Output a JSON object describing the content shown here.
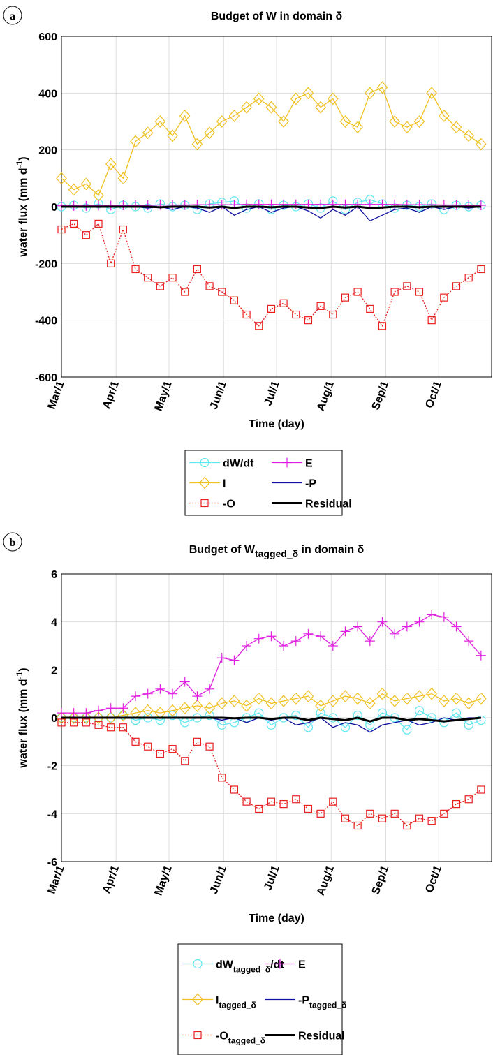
{
  "chart_data": [
    {
      "type": "line",
      "panel_label": "a",
      "title": [
        "Budget of W in domain δ"
      ],
      "ylabel": [
        "water flux (mm d",
        "-1",
        ")"
      ],
      "xlabel": "Time (day)",
      "x": [
        0,
        7,
        14,
        21,
        28,
        35,
        42,
        49,
        56,
        63,
        70,
        77,
        84,
        91,
        98,
        105,
        112,
        119,
        126,
        133,
        140,
        147,
        154,
        161,
        168,
        175,
        182,
        189,
        196,
        203,
        210,
        217,
        224,
        231,
        238
      ],
      "xlim": [
        0,
        244
      ],
      "xticks": [
        {
          "value": 0,
          "label": "Mar/1"
        },
        {
          "value": 31,
          "label": "Apr/1"
        },
        {
          "value": 61,
          "label": "May/1"
        },
        {
          "value": 92,
          "label": "Jun/1"
        },
        {
          "value": 122,
          "label": "Jul/1"
        },
        {
          "value": 153,
          "label": "Aug/1"
        },
        {
          "value": 184,
          "label": "Sep/1"
        },
        {
          "value": 214,
          "label": "Oct/1"
        }
      ],
      "ylim": [
        -600,
        600
      ],
      "yticks": [
        600,
        400,
        200,
        0,
        -200,
        -400,
        -600
      ],
      "grid": true,
      "series": [
        {
          "name": [
            "dW/dt"
          ],
          "color": "#5ee6f0",
          "marker": "circle",
          "values": [
            0,
            5,
            -5,
            10,
            -10,
            5,
            0,
            -5,
            10,
            0,
            5,
            -10,
            10,
            15,
            20,
            -5,
            10,
            -10,
            5,
            0,
            10,
            -5,
            20,
            -10,
            15,
            25,
            10,
            -5,
            5,
            0,
            10,
            -10,
            5,
            0,
            5
          ]
        },
        {
          "name": [
            "I"
          ],
          "color": "#f0c020",
          "marker": "diamond",
          "values": [
            100,
            60,
            80,
            40,
            150,
            100,
            230,
            260,
            300,
            250,
            320,
            220,
            260,
            300,
            320,
            350,
            380,
            350,
            300,
            380,
            400,
            350,
            380,
            300,
            280,
            400,
            420,
            300,
            280,
            300,
            400,
            320,
            280,
            250,
            220
          ]
        },
        {
          "name": [
            "-O"
          ],
          "color": "#e82020",
          "marker": "square",
          "dash": true,
          "values": [
            -80,
            -60,
            -100,
            -60,
            -200,
            -80,
            -220,
            -250,
            -280,
            -250,
            -300,
            -220,
            -280,
            -300,
            -330,
            -380,
            -420,
            -360,
            -340,
            -380,
            -400,
            -350,
            -380,
            -320,
            -300,
            -360,
            -420,
            -300,
            -280,
            -300,
            -400,
            -320,
            -280,
            -250,
            -220
          ]
        },
        {
          "name": [
            "E"
          ],
          "color": "#e020e0",
          "marker": "plus",
          "values": [
            3,
            3,
            3,
            4,
            4,
            5,
            5,
            5,
            6,
            6,
            6,
            7,
            7,
            7,
            7,
            8,
            8,
            8,
            8,
            8,
            8,
            8,
            8,
            8,
            8,
            8,
            8,
            8,
            7,
            7,
            7,
            6,
            6,
            5,
            5
          ]
        },
        {
          "name": [
            "-P"
          ],
          "color": "#1010a0",
          "marker": "none",
          "values": [
            0,
            0,
            0,
            0,
            0,
            0,
            0,
            -5,
            0,
            -10,
            0,
            -5,
            -20,
            0,
            -30,
            -10,
            0,
            -20,
            -5,
            0,
            -15,
            -40,
            -10,
            -30,
            0,
            -50,
            -30,
            -10,
            -5,
            -20,
            0,
            -10,
            0,
            -5,
            0
          ]
        },
        {
          "name": [
            "Residual"
          ],
          "color": "#000000",
          "marker": "none",
          "width": 3,
          "values": [
            0,
            0,
            0,
            0,
            0,
            0,
            0,
            0,
            -2,
            0,
            0,
            0,
            -3,
            0,
            -5,
            0,
            0,
            -2,
            0,
            0,
            -3,
            -5,
            0,
            -3,
            0,
            -5,
            -3,
            0,
            0,
            -2,
            0,
            0,
            0,
            0,
            0
          ]
        }
      ]
    },
    {
      "type": "line",
      "panel_label": "b",
      "title": [
        "Budget of W",
        "tagged_δ",
        " in domain δ"
      ],
      "ylabel": [
        "water flux (mm d",
        "-1",
        ")"
      ],
      "xlabel": "Time (day)",
      "x": [
        0,
        7,
        14,
        21,
        28,
        35,
        42,
        49,
        56,
        63,
        70,
        77,
        84,
        91,
        98,
        105,
        112,
        119,
        126,
        133,
        140,
        147,
        154,
        161,
        168,
        175,
        182,
        189,
        196,
        203,
        210,
        217,
        224,
        231,
        238
      ],
      "xlim": [
        0,
        244
      ],
      "xticks": [
        {
          "value": 0,
          "label": "Mar/1"
        },
        {
          "value": 31,
          "label": "Apr/1"
        },
        {
          "value": 61,
          "label": "May/1"
        },
        {
          "value": 92,
          "label": "Jun/1"
        },
        {
          "value": 122,
          "label": "Jul/1"
        },
        {
          "value": 153,
          "label": "Aug/1"
        },
        {
          "value": 184,
          "label": "Sep/1"
        },
        {
          "value": 214,
          "label": "Oct/1"
        }
      ],
      "ylim": [
        -6,
        6
      ],
      "yticks": [
        6,
        4,
        2,
        0,
        -2,
        -4,
        -6
      ],
      "grid": true,
      "series": [
        {
          "name": [
            "dW",
            "tagged_δ",
            "/dt"
          ],
          "color": "#5ee6f0",
          "marker": "circle",
          "values": [
            0,
            0,
            0,
            0,
            0,
            0.1,
            -0.1,
            0,
            -0.1,
            0.1,
            -0.2,
            0,
            0.1,
            -0.3,
            -0.2,
            0,
            0.2,
            -0.3,
            0,
            0.1,
            -0.4,
            0.2,
            0,
            -0.4,
            0.1,
            -0.3,
            0.2,
            0,
            -0.5,
            0.3,
            0,
            -0.2,
            0.2,
            -0.3,
            -0.1
          ]
        },
        {
          "name": [
            "I",
            "tagged_δ"
          ],
          "color": "#f0c020",
          "marker": "diamond",
          "values": [
            0,
            0,
            0,
            0,
            0,
            0.1,
            0.2,
            0.3,
            0.2,
            0.3,
            0.4,
            0.5,
            0.4,
            0.6,
            0.7,
            0.5,
            0.8,
            0.6,
            0.7,
            0.8,
            0.9,
            0.5,
            0.7,
            0.9,
            0.8,
            0.6,
            1.0,
            0.7,
            0.8,
            0.9,
            1.0,
            0.7,
            0.8,
            0.6,
            0.8
          ]
        },
        {
          "name": [
            "-O",
            "tagged_δ"
          ],
          "color": "#e82020",
          "marker": "square",
          "dash": true,
          "values": [
            -0.2,
            -0.2,
            -0.2,
            -0.3,
            -0.4,
            -0.4,
            -1.0,
            -1.2,
            -1.5,
            -1.3,
            -1.8,
            -1.0,
            -1.2,
            -2.5,
            -3.0,
            -3.5,
            -3.8,
            -3.5,
            -3.6,
            -3.4,
            -3.8,
            -4.0,
            -3.5,
            -4.2,
            -4.5,
            -4.0,
            -4.2,
            -4.0,
            -4.5,
            -4.2,
            -4.3,
            -4.0,
            -3.6,
            -3.4,
            -3.0
          ]
        },
        {
          "name": [
            "E"
          ],
          "color": "#e020e0",
          "marker": "plus",
          "values": [
            0.2,
            0.2,
            0.2,
            0.3,
            0.4,
            0.4,
            0.9,
            1.0,
            1.2,
            1.0,
            1.5,
            0.9,
            1.2,
            2.5,
            2.4,
            3.0,
            3.3,
            3.4,
            3.0,
            3.2,
            3.5,
            3.4,
            3.0,
            3.6,
            3.8,
            3.2,
            4.0,
            3.5,
            3.8,
            4.0,
            4.3,
            4.2,
            3.8,
            3.2,
            2.6
          ]
        },
        {
          "name": [
            "-P",
            "tagged_δ"
          ],
          "color": "#1010a0",
          "marker": "none",
          "values": [
            0,
            0,
            0,
            0,
            0,
            0,
            0,
            0,
            0,
            0,
            0,
            0,
            0,
            -0.1,
            0,
            -0.2,
            0,
            -0.1,
            0,
            -0.3,
            -0.2,
            0,
            -0.4,
            -0.2,
            -0.3,
            -0.6,
            -0.3,
            -0.2,
            -0.1,
            -0.3,
            -0.2,
            0,
            -0.1,
            0,
            0
          ]
        },
        {
          "name": [
            "Residual"
          ],
          "color": "#000000",
          "marker": "none",
          "width": 3,
          "values": [
            0,
            0,
            0,
            0,
            0,
            0,
            0,
            0,
            0,
            0,
            0,
            0,
            0,
            0,
            -0.02,
            0,
            0,
            -0.05,
            0,
            0,
            -0.1,
            0,
            -0.05,
            -0.1,
            0,
            -0.15,
            0,
            0,
            -0.1,
            -0.05,
            -0.1,
            -0.15,
            -0.1,
            -0.05,
            0
          ]
        }
      ]
    }
  ]
}
